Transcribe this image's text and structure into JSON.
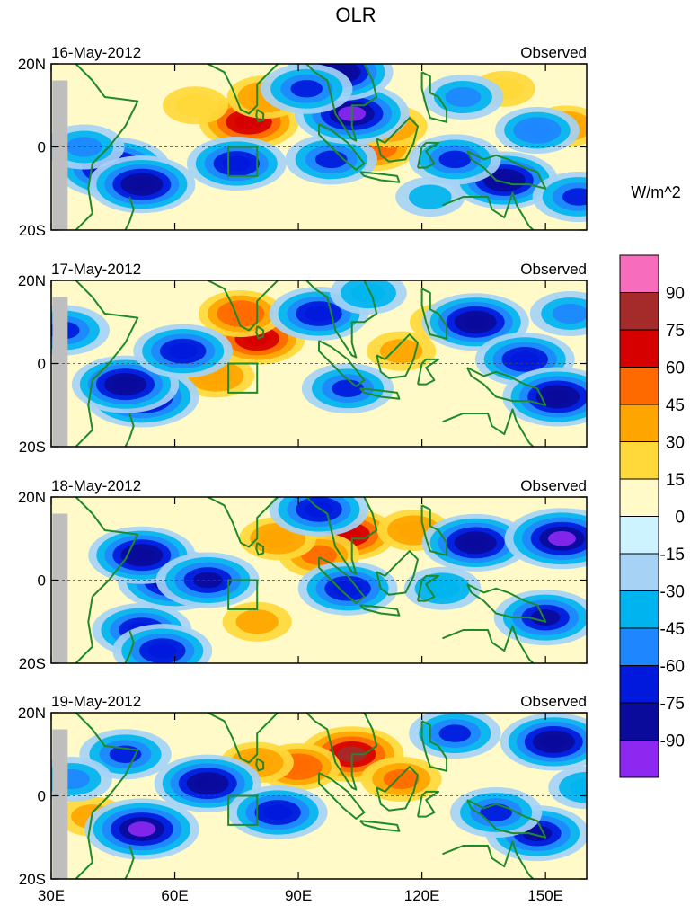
{
  "chart_data": {
    "type": "heatmap",
    "title": "OLR",
    "units_label": "W/m^2",
    "x_ticks": [
      "30E",
      "60E",
      "90E",
      "120E",
      "150E"
    ],
    "x_tick_values": [
      30,
      60,
      90,
      120,
      150
    ],
    "xlim": [
      30,
      160
    ],
    "y_ticks": [
      "20N",
      "0",
      "20S"
    ],
    "y_tick_values": [
      20,
      0,
      -20
    ],
    "ylim": [
      -20,
      20
    ],
    "colorbar": {
      "labels": [
        "90",
        "75",
        "60",
        "45",
        "30",
        "15",
        "0",
        "-15",
        "-30",
        "-45",
        "-60",
        "-75",
        "-90"
      ],
      "colors": [
        "#f76dbb",
        "#a52a2a",
        "#d70000",
        "#ff6a00",
        "#ffa500",
        "#ffd83a",
        "#fffac8",
        "#cdf3ff",
        "#a5d2f5",
        "#00b5ef",
        "#1e87ff",
        "#0019dc",
        "#0a0a9b",
        "#8c28f0"
      ]
    },
    "panels": [
      {
        "date": "16-May-2012",
        "label": "Observed",
        "blobs": [
          {
            "lon": 78,
            "lat": 6,
            "value": 70
          },
          {
            "lon": 82,
            "lat": 12,
            "value": 40
          },
          {
            "lon": 65,
            "lat": 10,
            "value": 25
          },
          {
            "lon": 108,
            "lat": 0,
            "value": 55
          },
          {
            "lon": 112,
            "lat": 5,
            "value": 40
          },
          {
            "lon": 155,
            "lat": 5,
            "value": 35
          },
          {
            "lon": 140,
            "lat": 14,
            "value": 20
          },
          {
            "lon": 45,
            "lat": -5,
            "value": -90
          },
          {
            "lon": 52,
            "lat": -9,
            "value": -80
          },
          {
            "lon": 38,
            "lat": 0,
            "value": -45
          },
          {
            "lon": 75,
            "lat": -4,
            "value": -70
          },
          {
            "lon": 98,
            "lat": -3,
            "value": -60
          },
          {
            "lon": 103,
            "lat": 8,
            "value": -90
          },
          {
            "lon": 100,
            "lat": 18,
            "value": -80
          },
          {
            "lon": 92,
            "lat": 14,
            "value": -60
          },
          {
            "lon": 140,
            "lat": -8,
            "value": -80
          },
          {
            "lon": 128,
            "lat": -3,
            "value": -60
          },
          {
            "lon": 148,
            "lat": 4,
            "value": -50
          },
          {
            "lon": 158,
            "lat": -12,
            "value": -60
          },
          {
            "lon": 130,
            "lat": 12,
            "value": -45
          },
          {
            "lon": 122,
            "lat": -12,
            "value": -30
          }
        ]
      },
      {
        "date": "17-May-2012",
        "label": "Observed",
        "blobs": [
          {
            "lon": 80,
            "lat": 6,
            "value": 65
          },
          {
            "lon": 76,
            "lat": 12,
            "value": 50
          },
          {
            "lon": 70,
            "lat": -3,
            "value": 40
          },
          {
            "lon": 115,
            "lat": 3,
            "value": 30
          },
          {
            "lon": 125,
            "lat": 10,
            "value": 25
          },
          {
            "lon": 52,
            "lat": -8,
            "value": -90
          },
          {
            "lon": 48,
            "lat": -5,
            "value": -80
          },
          {
            "lon": 62,
            "lat": 3,
            "value": -70
          },
          {
            "lon": 33,
            "lat": 8,
            "value": -60
          },
          {
            "lon": 95,
            "lat": 12,
            "value": -70
          },
          {
            "lon": 102,
            "lat": -6,
            "value": -60
          },
          {
            "lon": 133,
            "lat": 10,
            "value": -80
          },
          {
            "lon": 145,
            "lat": 1,
            "value": -70
          },
          {
            "lon": 153,
            "lat": -8,
            "value": -85
          },
          {
            "lon": 156,
            "lat": 12,
            "value": -45
          },
          {
            "lon": 107,
            "lat": 17,
            "value": -40
          }
        ]
      },
      {
        "date": "18-May-2012",
        "label": "Observed",
        "blobs": [
          {
            "lon": 102,
            "lat": 11,
            "value": 65
          },
          {
            "lon": 95,
            "lat": 6,
            "value": 45
          },
          {
            "lon": 85,
            "lat": 10,
            "value": 40
          },
          {
            "lon": 118,
            "lat": 12,
            "value": 35
          },
          {
            "lon": 80,
            "lat": -10,
            "value": 30
          },
          {
            "lon": 60,
            "lat": 0,
            "value": -90
          },
          {
            "lon": 52,
            "lat": 6,
            "value": -80
          },
          {
            "lon": 68,
            "lat": 0,
            "value": -75
          },
          {
            "lon": 52,
            "lat": -12,
            "value": -70
          },
          {
            "lon": 57,
            "lat": -17,
            "value": -70
          },
          {
            "lon": 95,
            "lat": 17,
            "value": -70
          },
          {
            "lon": 102,
            "lat": -2,
            "value": -70
          },
          {
            "lon": 133,
            "lat": 9,
            "value": -80
          },
          {
            "lon": 154,
            "lat": 10,
            "value": -90
          },
          {
            "lon": 150,
            "lat": -9,
            "value": -75
          },
          {
            "lon": 125,
            "lat": -2,
            "value": -40
          }
        ]
      },
      {
        "date": "19-May-2012",
        "label": "Observed",
        "blobs": [
          {
            "lon": 103,
            "lat": 10,
            "value": 75
          },
          {
            "lon": 90,
            "lat": 7,
            "value": 50
          },
          {
            "lon": 115,
            "lat": 4,
            "value": 45
          },
          {
            "lon": 80,
            "lat": 8,
            "value": 35
          },
          {
            "lon": 40,
            "lat": -5,
            "value": 30
          },
          {
            "lon": 52,
            "lat": -8,
            "value": -90
          },
          {
            "lon": 48,
            "lat": 10,
            "value": -60
          },
          {
            "lon": 68,
            "lat": 3,
            "value": -80
          },
          {
            "lon": 85,
            "lat": -4,
            "value": -70
          },
          {
            "lon": 35,
            "lat": 4,
            "value": -45
          },
          {
            "lon": 152,
            "lat": 13,
            "value": -80
          },
          {
            "lon": 148,
            "lat": -9,
            "value": -75
          },
          {
            "lon": 128,
            "lat": 15,
            "value": -60
          },
          {
            "lon": 138,
            "lat": -4,
            "value": -60
          },
          {
            "lon": 160,
            "lat": 2,
            "value": -40
          }
        ]
      }
    ]
  }
}
